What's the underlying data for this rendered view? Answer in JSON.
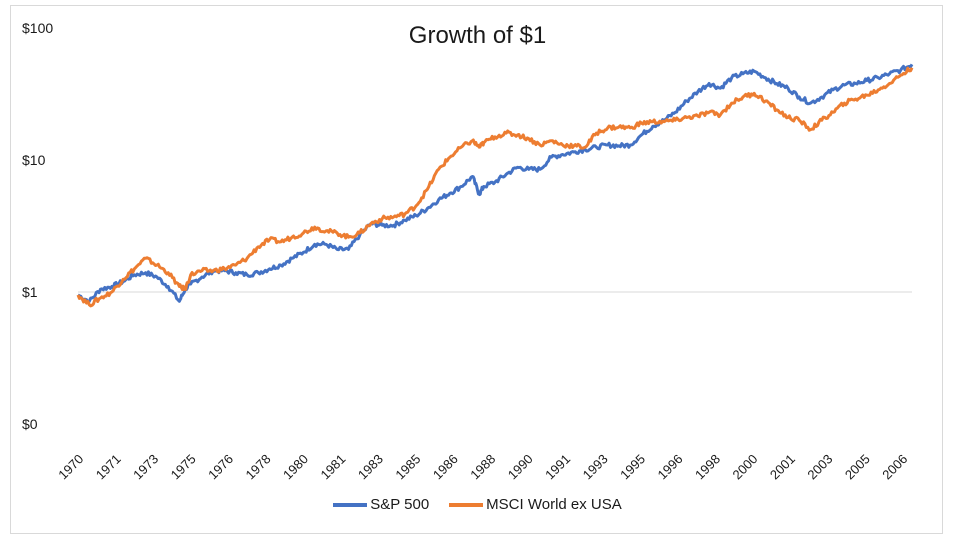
{
  "chart_data": {
    "type": "line",
    "title": "Growth of $1",
    "xlabel": "",
    "ylabel": "",
    "y_scale": "log",
    "ylim": [
      0.1,
      100
    ],
    "y_tick_labels": [
      "$0",
      "$1",
      "$10",
      "$100"
    ],
    "y_tick_values": [
      0.1,
      1,
      10,
      100
    ],
    "x_tick_labels": [
      "1970",
      "1971",
      "1973",
      "1975",
      "1976",
      "1978",
      "1980",
      "1981",
      "1983",
      "1985",
      "1986",
      "1988",
      "1990",
      "1991",
      "1993",
      "1995",
      "1996",
      "1998",
      "2000",
      "2001",
      "2003",
      "2005",
      "2006"
    ],
    "x_range": [
      1970,
      2007
    ],
    "grid": "horizontal at $1 only",
    "legend_position": "bottom",
    "series": [
      {
        "name": "S&P 500",
        "color": "#4472c4",
        "x": [
          1970,
          1970.5,
          1971,
          1971.5,
          1972,
          1972.5,
          1973,
          1973.5,
          1974,
          1974.5,
          1974.75,
          1975,
          1975.5,
          1976,
          1976.5,
          1977,
          1977.5,
          1978,
          1978.5,
          1979,
          1979.5,
          1980,
          1980.5,
          1981,
          1981.5,
          1982,
          1982.5,
          1983,
          1983.5,
          1984,
          1984.5,
          1985,
          1985.5,
          1986,
          1986.5,
          1987,
          1987.5,
          1987.8,
          1988,
          1988.5,
          1989,
          1989.5,
          1990,
          1990.5,
          1991,
          1991.5,
          1992,
          1992.5,
          1993,
          1993.5,
          1994,
          1994.5,
          1995,
          1995.5,
          1996,
          1996.5,
          1997,
          1997.5,
          1998,
          1998.5,
          1999,
          1999.5,
          2000,
          2000.5,
          2001,
          2001.5,
          2002,
          2002.5,
          2003,
          2003.5,
          2004,
          2004.5,
          2005,
          2005.5,
          2006,
          2006.5,
          2007
        ],
        "values": [
          0.95,
          0.85,
          1.05,
          1.1,
          1.2,
          1.35,
          1.4,
          1.3,
          1.1,
          0.85,
          1.05,
          1.15,
          1.3,
          1.45,
          1.45,
          1.4,
          1.35,
          1.4,
          1.5,
          1.6,
          1.8,
          2.0,
          2.3,
          2.3,
          2.1,
          2.1,
          2.7,
          3.3,
          3.2,
          3.2,
          3.5,
          3.8,
          4.3,
          5.0,
          5.6,
          6.3,
          7.5,
          5.5,
          6.3,
          6.8,
          7.8,
          8.8,
          8.5,
          8.5,
          10.5,
          11.0,
          11.5,
          12.0,
          12.5,
          13.0,
          12.8,
          13.0,
          15.5,
          18.0,
          20.0,
          23.0,
          28.0,
          33.0,
          38.0,
          35.0,
          42.0,
          45.0,
          47.0,
          42.0,
          38.0,
          35.0,
          30.0,
          27.0,
          30.0,
          34.0,
          37.0,
          38.0,
          40.0,
          42.0,
          45.0,
          48.0,
          53.0
        ]
      },
      {
        "name": "MSCI World ex USA",
        "color": "#ed7d31",
        "x": [
          1970,
          1970.5,
          1971,
          1971.5,
          1972,
          1972.5,
          1973,
          1973.5,
          1974,
          1974.5,
          1974.75,
          1975,
          1975.5,
          1976,
          1976.5,
          1977,
          1977.5,
          1978,
          1978.5,
          1979,
          1979.5,
          1980,
          1980.5,
          1981,
          1981.5,
          1982,
          1982.5,
          1983,
          1983.5,
          1984,
          1984.5,
          1985,
          1985.5,
          1986,
          1986.5,
          1987,
          1987.5,
          1987.8,
          1988,
          1988.5,
          1989,
          1989.5,
          1990,
          1990.5,
          1991,
          1991.5,
          1992,
          1992.5,
          1993,
          1993.5,
          1994,
          1994.5,
          1995,
          1995.5,
          1996,
          1996.5,
          1997,
          1997.5,
          1998,
          1998.5,
          1999,
          1999.5,
          2000,
          2000.5,
          2001,
          2001.5,
          2002,
          2002.5,
          2003,
          2003.5,
          2004,
          2004.5,
          2005,
          2005.5,
          2006,
          2006.5,
          2007
        ],
        "values": [
          0.95,
          0.8,
          0.9,
          1.0,
          1.25,
          1.5,
          1.8,
          1.6,
          1.4,
          1.1,
          1.05,
          1.35,
          1.45,
          1.45,
          1.5,
          1.6,
          1.8,
          2.2,
          2.5,
          2.4,
          2.6,
          2.8,
          3.1,
          2.9,
          2.8,
          2.6,
          2.8,
          3.3,
          3.6,
          3.7,
          3.9,
          4.5,
          6.0,
          8.5,
          10.5,
          12.5,
          14.0,
          12.5,
          13.5,
          15.0,
          16.0,
          15.5,
          14.5,
          13.0,
          14.0,
          13.0,
          12.8,
          12.5,
          16.0,
          17.5,
          17.8,
          17.5,
          19.0,
          19.5,
          19.5,
          20.0,
          21.0,
          21.5,
          23.0,
          22.0,
          27.0,
          30.0,
          32.0,
          28.0,
          24.0,
          21.0,
          20.0,
          17.0,
          20.0,
          23.0,
          27.0,
          29.0,
          31.0,
          34.0,
          38.0,
          44.0,
          50.0
        ]
      }
    ]
  }
}
